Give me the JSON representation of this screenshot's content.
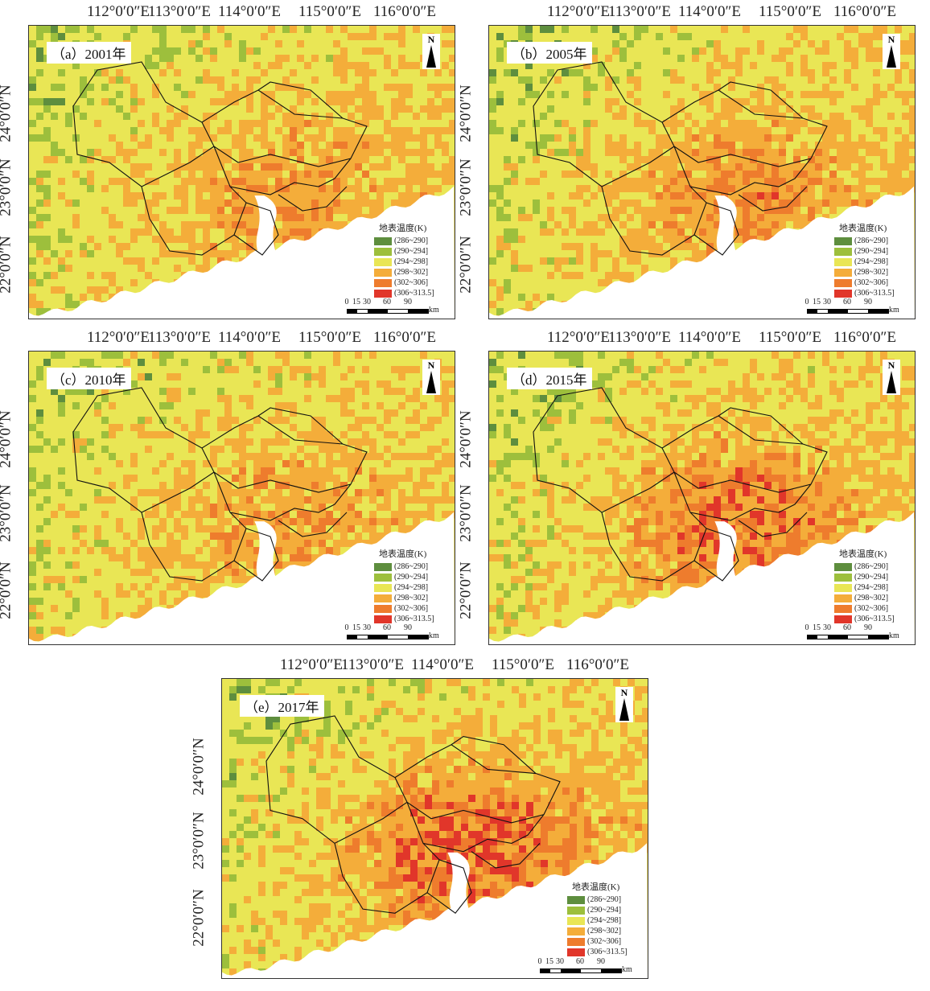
{
  "colors": {
    "c1": "#5e8e3e",
    "c2": "#9dbf3c",
    "c3": "#e9e655",
    "c4": "#f4ad3a",
    "c5": "#ee7c2d",
    "c6": "#e1362a",
    "sea": "#ffffff",
    "boundary": "#111111"
  },
  "longitude_labels": [
    "112°0′0″E",
    "113°0′0″E",
    "114°0′0″E",
    "115°0′0″E",
    "116°0′0″E"
  ],
  "latitude_labels": [
    "24°0′0″N",
    "23°0′0″N",
    "22°0′0″N"
  ],
  "legend": {
    "title": "地表温度(K)",
    "classes": [
      "(286~290]",
      "(290~294]",
      "(294~298]",
      "(298~302]",
      "(302~306]",
      "(306~313.5]"
    ]
  },
  "scalebar": {
    "ticks": [
      "0",
      "15",
      "30",
      "60",
      "90"
    ],
    "unit": "km"
  },
  "north_arrow": {
    "label": "N",
    "icon": "north-arrow-icon"
  },
  "panels": [
    {
      "id": "a",
      "title": "（a）2001年",
      "heat_level": 0.4
    },
    {
      "id": "b",
      "title": "（b）2005年",
      "heat_level": 0.45
    },
    {
      "id": "c",
      "title": "（c）2010年",
      "heat_level": 0.35
    },
    {
      "id": "d",
      "title": "（d）2015年",
      "heat_level": 0.6
    },
    {
      "id": "e",
      "title": "（e）2017年",
      "heat_level": 0.7
    }
  ]
}
